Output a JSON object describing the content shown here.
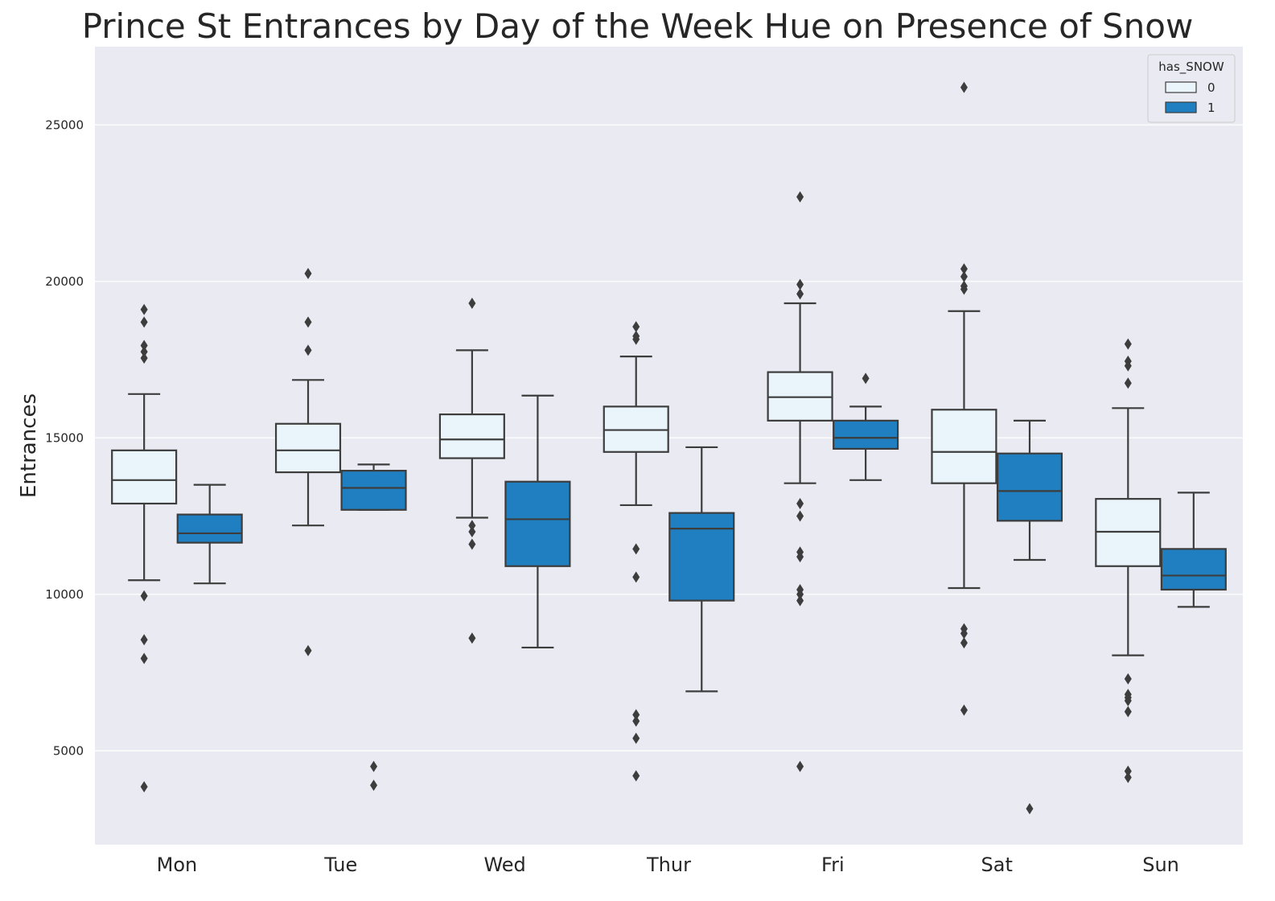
{
  "chart_data": {
    "type": "boxplot",
    "title": "Prince St Entrances by Day of the Week Hue on Presence of Snow",
    "xlabel": "",
    "ylabel": "Entrances",
    "ylim": [
      2000,
      27500
    ],
    "yticks": [
      5000,
      10000,
      15000,
      20000,
      25000
    ],
    "categories": [
      "Mon",
      "Tue",
      "Wed",
      "Thur",
      "Fri",
      "Sat",
      "Sun"
    ],
    "grid": true,
    "legend": {
      "title": "has_SNOW",
      "placement": "top-right"
    },
    "series": [
      {
        "name": "0",
        "color": "#eaf5fb",
        "boxes": [
          {
            "whislo": 10450,
            "q1": 12900,
            "med": 13650,
            "q3": 14600,
            "whishi": 16400,
            "fliers": [
              19100,
              18700,
              17950,
              17750,
              17550,
              9950,
              8550,
              7950,
              3850
            ]
          },
          {
            "whislo": 12200,
            "q1": 13900,
            "med": 14600,
            "q3": 15450,
            "whishi": 16850,
            "fliers": [
              20250,
              18700,
              17800,
              8200
            ]
          },
          {
            "whislo": 12450,
            "q1": 14350,
            "med": 14950,
            "q3": 15750,
            "whishi": 17800,
            "fliers": [
              19300,
              12200,
              12000,
              11600,
              8600
            ]
          },
          {
            "whislo": 12850,
            "q1": 14550,
            "med": 15250,
            "q3": 16000,
            "whishi": 17600,
            "fliers": [
              18550,
              18250,
              18150,
              11450,
              10550,
              6150,
              5950,
              5400,
              4200
            ]
          },
          {
            "whislo": 13550,
            "q1": 15550,
            "med": 16300,
            "q3": 17100,
            "whishi": 19300,
            "fliers": [
              22700,
              19900,
              19600,
              12900,
              12500,
              11350,
              11200,
              10150,
              10000,
              9800,
              4500
            ]
          },
          {
            "whislo": 10200,
            "q1": 13550,
            "med": 14550,
            "q3": 15900,
            "whishi": 19050,
            "fliers": [
              26200,
              20400,
              20150,
              19850,
              19750,
              8900,
              8750,
              8450,
              6300
            ]
          },
          {
            "whislo": 8050,
            "q1": 10900,
            "med": 12000,
            "q3": 13050,
            "whishi": 15950,
            "fliers": [
              18000,
              17450,
              17300,
              16750,
              7300,
              6800,
              6700,
              6600,
              6250,
              4350,
              4150
            ]
          }
        ]
      },
      {
        "name": "1",
        "color": "#1f7fc0",
        "boxes": [
          {
            "whislo": 10350,
            "q1": 11650,
            "med": 11950,
            "q3": 12550,
            "whishi": 13500,
            "fliers": []
          },
          {
            "whislo": 12700,
            "q1": 12700,
            "med": 13400,
            "q3": 13950,
            "whishi": 14150,
            "fliers": [
              4500,
              3900
            ]
          },
          {
            "whislo": 8300,
            "q1": 10900,
            "med": 12400,
            "q3": 13600,
            "whishi": 16350,
            "fliers": []
          },
          {
            "whislo": 6900,
            "q1": 9800,
            "med": 12100,
            "q3": 12600,
            "whishi": 14700,
            "fliers": []
          },
          {
            "whislo": 13650,
            "q1": 14650,
            "med": 15000,
            "q3": 15550,
            "whishi": 16000,
            "fliers": [
              16900
            ]
          },
          {
            "whislo": 11100,
            "q1": 12350,
            "med": 13300,
            "q3": 14500,
            "whishi": 15550,
            "fliers": [
              3150
            ]
          },
          {
            "whislo": 9600,
            "q1": 10150,
            "med": 10600,
            "q3": 11450,
            "whishi": 13250,
            "fliers": []
          }
        ]
      }
    ]
  }
}
